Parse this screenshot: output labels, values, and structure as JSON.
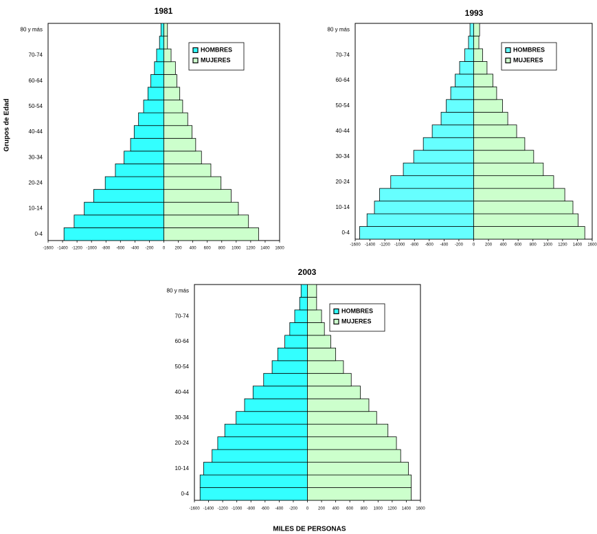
{
  "chart_data": [
    {
      "type": "pyramid",
      "title": "1981",
      "ylabel": "Grupos de Edad",
      "categories": [
        "0-4",
        null,
        "10-14",
        null,
        "20-24",
        null,
        "30-34",
        null,
        "40-44",
        null,
        "50-54",
        null,
        "60-64",
        null,
        "70-74",
        null,
        "80 y más"
      ],
      "series": [
        {
          "name": "HOMBRES",
          "color": "#33ffff",
          "values": [
            -1380,
            -1240,
            -1100,
            -970,
            -810,
            -670,
            -550,
            -460,
            -410,
            -350,
            -280,
            -220,
            -180,
            -130,
            -100,
            -60,
            -40
          ]
        },
        {
          "name": "MUJERES",
          "color": "#ccffcc",
          "values": [
            1310,
            1170,
            1030,
            930,
            790,
            650,
            520,
            440,
            390,
            330,
            260,
            220,
            180,
            160,
            100,
            50,
            50
          ]
        }
      ],
      "xlim": [
        -1600,
        1600
      ],
      "xticks": [
        -1600,
        -1400,
        -1200,
        -1000,
        -800,
        -600,
        -400,
        -200,
        0,
        200,
        400,
        600,
        800,
        1000,
        1200,
        1400,
        1600
      ],
      "legend": "upper right"
    },
    {
      "type": "pyramid",
      "title": "1993",
      "categories": [
        "0-4",
        null,
        "10-14",
        null,
        "20-24",
        null,
        "30-34",
        null,
        "40-44",
        null,
        "50-54",
        null,
        "60-64",
        null,
        "70-74",
        null,
        "80 y más"
      ],
      "series": [
        {
          "name": "HOMBRES",
          "color": "#66ffff",
          "values": [
            -1540,
            -1440,
            -1340,
            -1270,
            -1120,
            -950,
            -810,
            -680,
            -560,
            -440,
            -370,
            -310,
            -250,
            -190,
            -120,
            -70,
            -50
          ]
        },
        {
          "name": "MUJERES",
          "color": "#ccffcc",
          "values": [
            1500,
            1410,
            1340,
            1230,
            1080,
            940,
            810,
            690,
            580,
            460,
            390,
            310,
            260,
            180,
            120,
            70,
            80
          ]
        }
      ],
      "xlim": [
        -1600,
        1600
      ],
      "xticks": [
        -1600,
        -1400,
        -1200,
        -1000,
        -800,
        -600,
        -400,
        -200,
        0,
        200,
        400,
        600,
        800,
        1000,
        1200,
        1400,
        1600
      ],
      "legend": "upper right"
    },
    {
      "type": "pyramid",
      "title": "2003",
      "xlabel": "MILES DE PERSONAS",
      "categories": [
        "0-4",
        null,
        "10-14",
        null,
        "20-24",
        null,
        "30-34",
        null,
        "40-44",
        null,
        "50-54",
        null,
        "60-64",
        null,
        "70-74",
        null,
        "80 y más"
      ],
      "series": [
        {
          "name": "HOMBRES",
          "color": "#33ffff",
          "values": [
            -1520,
            -1520,
            -1470,
            -1350,
            -1270,
            -1170,
            -1010,
            -890,
            -770,
            -620,
            -500,
            -420,
            -320,
            -250,
            -180,
            -110,
            -90
          ]
        },
        {
          "name": "MUJERES",
          "color": "#ccffcc",
          "values": [
            1470,
            1470,
            1430,
            1320,
            1260,
            1140,
            980,
            870,
            750,
            620,
            510,
            400,
            330,
            240,
            200,
            130,
            130
          ]
        }
      ],
      "xlim": [
        -1600,
        1600
      ],
      "xticks": [
        -1600,
        -1400,
        -1200,
        -1000,
        -800,
        -600,
        -400,
        -200,
        0,
        200,
        400,
        600,
        800,
        1000,
        1200,
        1400,
        1600
      ],
      "legend": "upper right"
    }
  ]
}
